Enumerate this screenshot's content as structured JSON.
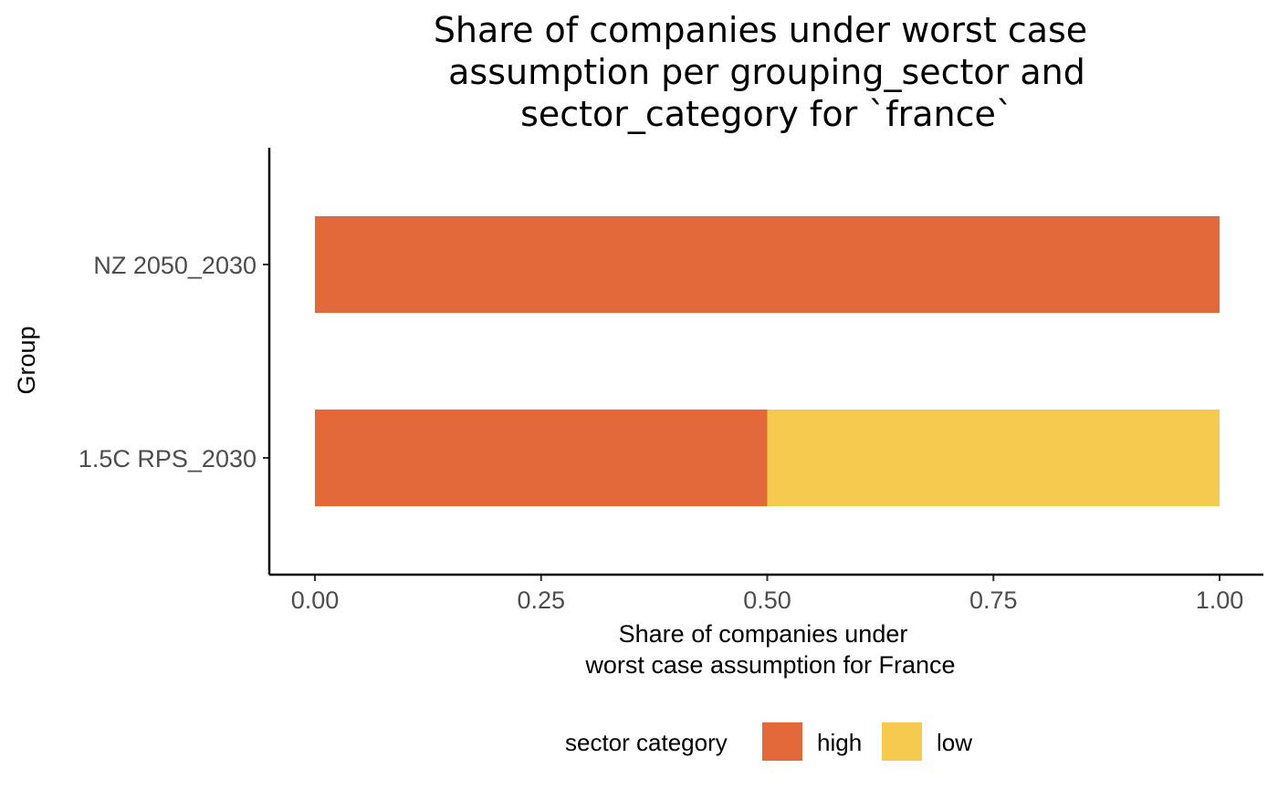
{
  "chart_data": {
    "type": "bar",
    "orientation": "horizontal",
    "stacked": true,
    "title_lines": [
      "Share of companies under worst case",
      "assumption per grouping_sector and",
      "sector_category for `france`"
    ],
    "xlabel_lines": [
      "Share of companies under",
      "worst case assumption for France"
    ],
    "ylabel": "Group",
    "categories": [
      "NZ 2050_2030",
      "1.5C RPS_2030"
    ],
    "series": [
      {
        "name": "high",
        "color": "#E4693A",
        "values": [
          1.0,
          0.5
        ]
      },
      {
        "name": "low",
        "color": "#F6CA4E",
        "values": [
          0.0,
          0.5
        ]
      }
    ],
    "xlim": [
      0,
      1
    ],
    "x_ticks": [
      0,
      0.25,
      0.5,
      0.75,
      1.0
    ],
    "x_tick_labels": [
      "0.00",
      "0.25",
      "0.50",
      "0.75",
      "1.00"
    ],
    "legend": {
      "title": "sector category",
      "position": "bottom"
    },
    "grid": false
  }
}
